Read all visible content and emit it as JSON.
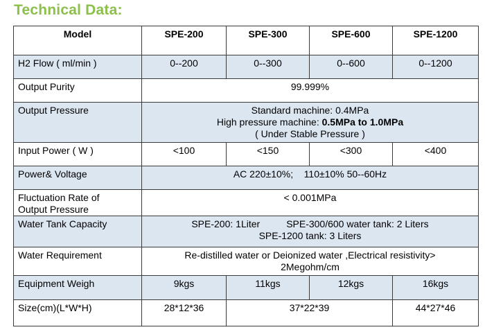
{
  "title": "Technical Data:",
  "header": {
    "model": "Model",
    "m1": "SPE-200",
    "m2": "SPE-300",
    "m3": "SPE-600",
    "m4": "SPE-1200"
  },
  "rows": {
    "h2flow": {
      "label": "H2 Flow ( ml/min )",
      "v1": "0--200",
      "v2": "0--300",
      "v3": "0--600",
      "v4": "0--1200"
    },
    "purity": {
      "label": "Output Purity",
      "value": "99.999%"
    },
    "pressure": {
      "label": "Output Pressure",
      "line1": "Standard machine: 0.4MPa",
      "line2_prefix": "High pressure machine: ",
      "line2_bold": "0.5MPa to 1.0MPa",
      "line3": "( Under Stable Pressure )"
    },
    "power": {
      "label": "Input Power ( W )",
      "v1": "<100",
      "v2": "<150",
      "v3": "<300",
      "v4": "<400"
    },
    "voltage": {
      "label": "Power& Voltage",
      "value": "AC 220±10%;    110±10% 50--60Hz"
    },
    "fluct": {
      "label_line1": "Fluctuation Rate of",
      "label_line2": "Output Pressure",
      "value": "< 0.001MPa"
    },
    "tank": {
      "label": "Water Tank Capacity",
      "line1a": "SPE-200: 1Liter",
      "line1b": "SPE-300/600 water tank: 2 Liters",
      "line2": "SPE-1200 tank: 3 Liters"
    },
    "water": {
      "label": "Water Requirement",
      "line1": "Re-distilled water or Deionized water ,Electrical resistivity>",
      "line2": "2Megohm/cm"
    },
    "weight": {
      "label": "Equipment Weigh",
      "v1": "9kgs",
      "v2": "11kgs",
      "v3": "12kgs",
      "v4": "16kgs"
    },
    "size": {
      "label": "Size(cm)(L*W*H)",
      "v1": "28*12*36",
      "v23": "37*22*39",
      "v4": "44*27*46"
    }
  },
  "colors": {
    "title": "#8cc04a",
    "shade": "#dce6f1",
    "border": "#3a3a3a"
  }
}
